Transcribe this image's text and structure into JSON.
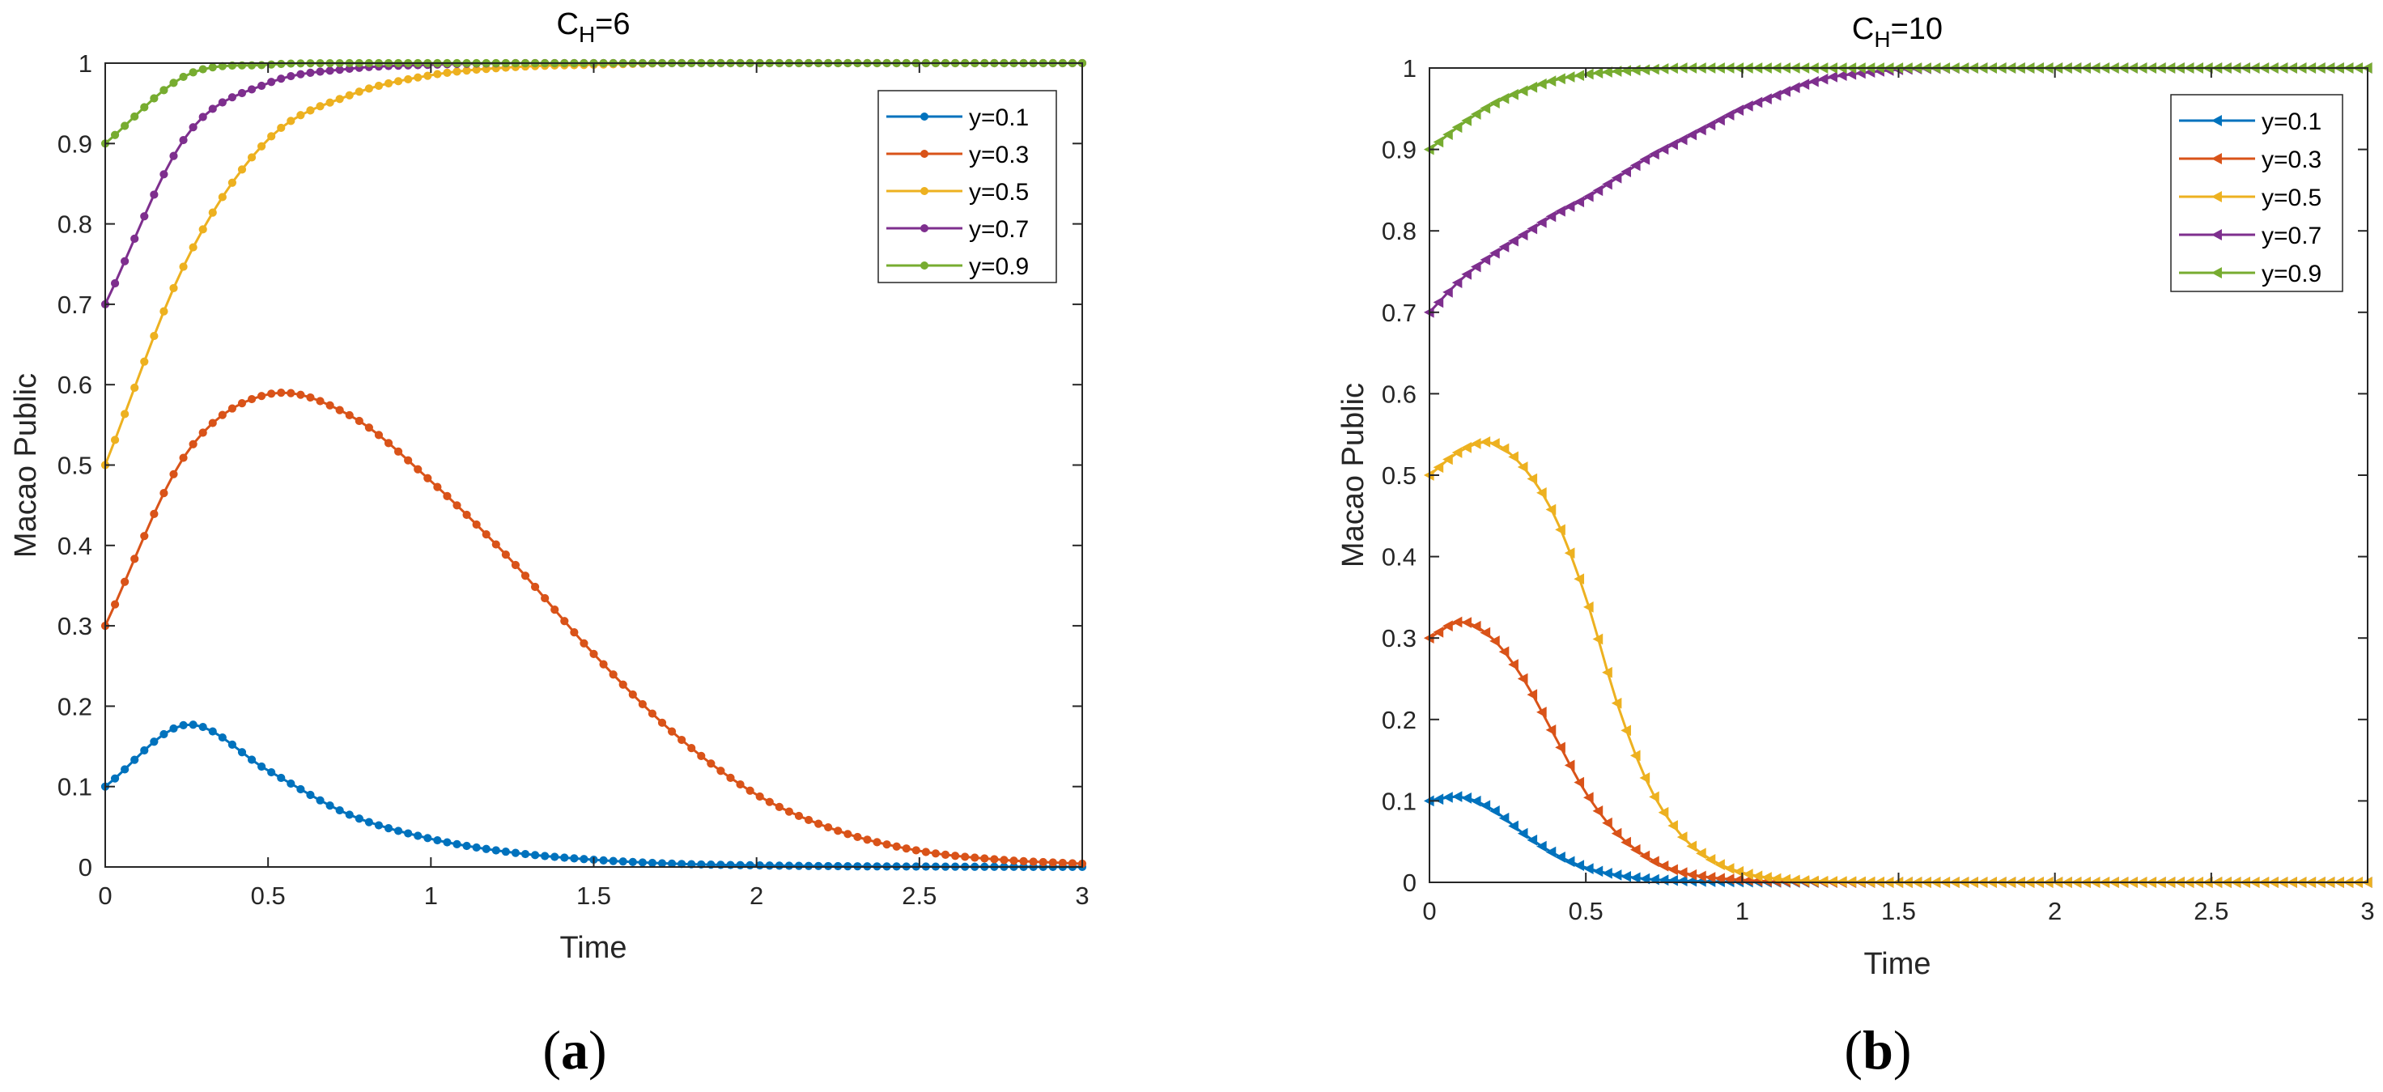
{
  "chart_data": [
    {
      "type": "line",
      "title": "C",
      "title_subscript": "H",
      "title_suffix": "=6",
      "xlabel": "Time",
      "ylabel": "Macao Public",
      "xlim": [
        0,
        3
      ],
      "ylim": [
        0,
        1
      ],
      "xticks": [
        0,
        0.5,
        1,
        1.5,
        2,
        2.5,
        3
      ],
      "xtick_labels": [
        "0",
        "0.5",
        "1",
        "1.5",
        "2",
        "2.5",
        "3"
      ],
      "yticks": [
        0,
        0.1,
        0.2,
        0.3,
        0.4,
        0.5,
        0.6,
        0.7,
        0.8,
        0.9,
        1
      ],
      "ytick_labels": [
        "0",
        "0.1",
        "0.2",
        "0.3",
        "0.4",
        "0.5",
        "0.6",
        "0.7",
        "0.8",
        "0.9",
        "1"
      ],
      "marker": "circle",
      "legend_position": "top-right",
      "grid": false,
      "caption": "(a)",
      "x": [
        0,
        0.25,
        0.5,
        0.75,
        1,
        1.25,
        1.5,
        1.75,
        2,
        2.25,
        2.5,
        2.75,
        3
      ],
      "series": [
        {
          "name": "y=0.1",
          "color": "#0072BD",
          "values": [
            0.1,
            0.177,
            0.12,
            0.065,
            0.035,
            0.018,
            0.009,
            0.004,
            0.002,
            0.001,
            0.0005,
            0.0002,
            0.0001
          ]
        },
        {
          "name": "y=0.3",
          "color": "#D95319",
          "values": [
            0.3,
            0.515,
            0.588,
            0.562,
            0.48,
            0.38,
            0.265,
            0.165,
            0.09,
            0.045,
            0.02,
            0.009,
            0.004
          ]
        },
        {
          "name": "y=0.5",
          "color": "#EDB120",
          "values": [
            0.5,
            0.755,
            0.905,
            0.96,
            0.985,
            0.995,
            0.998,
            1,
            1,
            1,
            1,
            1,
            1
          ]
        },
        {
          "name": "y=0.7",
          "color": "#7E2F8E",
          "values": [
            0.7,
            0.91,
            0.975,
            0.993,
            0.998,
            1,
            1,
            1,
            1,
            1,
            1,
            1,
            1
          ]
        },
        {
          "name": "y=0.9",
          "color": "#77AC30",
          "values": [
            0.9,
            0.985,
            0.998,
            1,
            1,
            1,
            1,
            1,
            1,
            1,
            1,
            1,
            1
          ]
        }
      ]
    },
    {
      "type": "line",
      "title": "C",
      "title_subscript": "H",
      "title_suffix": "=10",
      "xlabel": "Time",
      "ylabel": "Macao Public",
      "xlim": [
        0,
        3
      ],
      "ylim": [
        0,
        1
      ],
      "xticks": [
        0,
        0.5,
        1,
        1.5,
        2,
        2.5,
        3
      ],
      "xtick_labels": [
        "0",
        "0.5",
        "1",
        "1.5",
        "2",
        "2.5",
        "3"
      ],
      "yticks": [
        0,
        0.1,
        0.2,
        0.3,
        0.4,
        0.5,
        0.6,
        0.7,
        0.8,
        0.9,
        1
      ],
      "ytick_labels": [
        "0",
        "0.1",
        "0.2",
        "0.3",
        "0.4",
        "0.5",
        "0.6",
        "0.7",
        "0.8",
        "0.9",
        "1"
      ],
      "marker": "triangle-left",
      "legend_position": "top-right",
      "grid": false,
      "caption": "(b)",
      "x": [
        0,
        0.1,
        0.2,
        0.3,
        0.4,
        0.5,
        0.6,
        0.7,
        0.8,
        0.9,
        1,
        1.1,
        1.2,
        1.3,
        1.5,
        1.75,
        2,
        2.5,
        3
      ],
      "series": [
        {
          "name": "y=0.1",
          "color": "#0072BD",
          "values": [
            0.1,
            0.105,
            0.09,
            0.06,
            0.035,
            0.018,
            0.009,
            0.004,
            0.002,
            0.001,
            0.0005,
            0.0002,
            0,
            0,
            0,
            0,
            0,
            0,
            0
          ]
        },
        {
          "name": "y=0.3",
          "color": "#D95319",
          "values": [
            0.3,
            0.32,
            0.3,
            0.25,
            0.18,
            0.11,
            0.06,
            0.03,
            0.013,
            0.006,
            0.003,
            0.001,
            0.0005,
            0,
            0,
            0,
            0,
            0,
            0
          ]
        },
        {
          "name": "y=0.5",
          "color": "#EDB120",
          "values": [
            0.5,
            0.53,
            0.54,
            0.51,
            0.45,
            0.35,
            0.22,
            0.12,
            0.06,
            0.028,
            0.012,
            0.005,
            0.002,
            0.001,
            0,
            0,
            0,
            0,
            0
          ]
        },
        {
          "name": "y=0.7",
          "color": "#7E2F8E",
          "values": [
            0.7,
            0.74,
            0.77,
            0.795,
            0.82,
            0.84,
            0.865,
            0.89,
            0.91,
            0.93,
            0.95,
            0.965,
            0.98,
            0.99,
            0.998,
            1,
            1,
            1,
            1
          ]
        },
        {
          "name": "y=0.9",
          "color": "#77AC30",
          "values": [
            0.9,
            0.93,
            0.955,
            0.972,
            0.985,
            0.992,
            0.996,
            0.998,
            1,
            1,
            1,
            1,
            1,
            1,
            1,
            1,
            1,
            1,
            1
          ]
        }
      ]
    }
  ]
}
